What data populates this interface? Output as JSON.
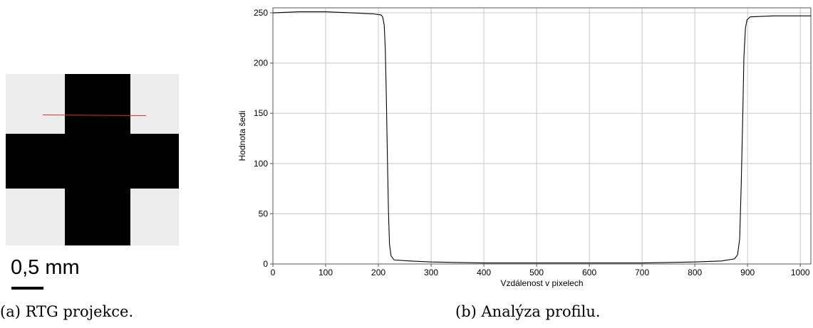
{
  "left_panel": {
    "scale_label": "0,5 mm",
    "caption": "(a) RTG projekce."
  },
  "right_panel": {
    "caption": "(b) Analýza profilu."
  },
  "colors": {
    "profile_line": "#e03030",
    "plot_line": "#000000",
    "grid": "#c8c8c8"
  },
  "chart_data": {
    "type": "line",
    "title": "",
    "xlabel": "Vzdálenost v pixelech",
    "ylabel": "Hodnota šedi",
    "xlim": [
      0,
      1020
    ],
    "ylim": [
      0,
      255
    ],
    "x_ticks": [
      0,
      100,
      200,
      300,
      400,
      500,
      600,
      700,
      800,
      900,
      1000
    ],
    "y_ticks": [
      0,
      50,
      100,
      150,
      200,
      250
    ],
    "grid": true,
    "series": [
      {
        "points": [
          [
            0,
            250
          ],
          [
            50,
            251
          ],
          [
            100,
            251
          ],
          [
            150,
            250
          ],
          [
            190,
            249
          ],
          [
            205,
            248
          ],
          [
            208,
            246
          ],
          [
            211,
            238
          ],
          [
            213,
            215
          ],
          [
            215,
            170
          ],
          [
            217,
            110
          ],
          [
            219,
            55
          ],
          [
            221,
            20
          ],
          [
            224,
            8
          ],
          [
            230,
            4
          ],
          [
            260,
            3
          ],
          [
            300,
            2
          ],
          [
            400,
            1
          ],
          [
            500,
            1
          ],
          [
            600,
            1
          ],
          [
            700,
            1
          ],
          [
            800,
            2
          ],
          [
            850,
            3
          ],
          [
            875,
            5
          ],
          [
            881,
            9
          ],
          [
            885,
            25
          ],
          [
            888,
            80
          ],
          [
            891,
            150
          ],
          [
            893,
            205
          ],
          [
            896,
            235
          ],
          [
            899,
            243
          ],
          [
            905,
            246
          ],
          [
            950,
            247
          ],
          [
            1000,
            247
          ],
          [
            1020,
            247
          ]
        ]
      }
    ]
  }
}
